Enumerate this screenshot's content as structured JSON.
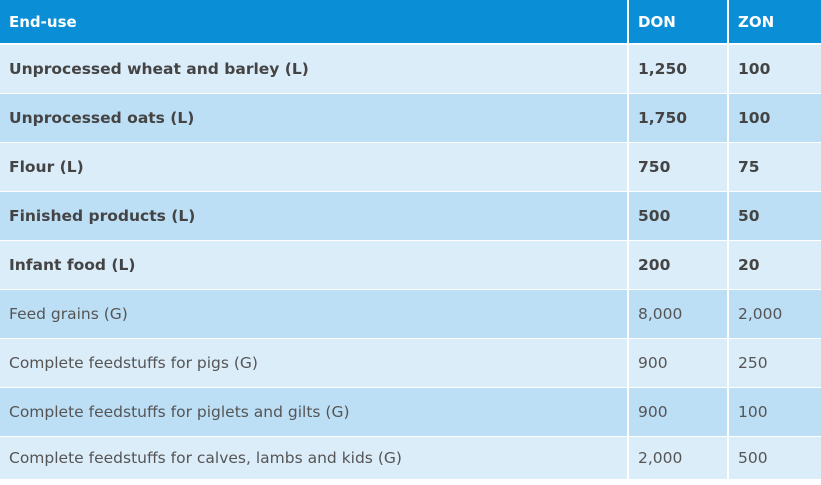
{
  "table": {
    "headers": [
      "End-use",
      "DON",
      "ZON"
    ],
    "rows": [
      {
        "end_use": "Unprocessed wheat and barley (L)",
        "don": "1,250",
        "zon": "100",
        "bold": true
      },
      {
        "end_use": "Unprocessed oats (L)",
        "don": "1,750",
        "zon": "100",
        "bold": true
      },
      {
        "end_use": "Flour (L)",
        "don": "750",
        "zon": "75",
        "bold": true
      },
      {
        "end_use": "Finished products (L)",
        "don": "500",
        "zon": "50",
        "bold": true
      },
      {
        "end_use": "Infant food (L)",
        "don": "200",
        "zon": "20",
        "bold": true
      },
      {
        "end_use": "Feed grains (G)",
        "don": "8,000",
        "zon": "2,000",
        "bold": false
      },
      {
        "end_use": "Complete feedstuffs for pigs (G)",
        "don": "900",
        "zon": "250",
        "bold": false
      },
      {
        "end_use": "Complete feedstuffs for piglets and gilts (G)",
        "don": "900",
        "zon": "100",
        "bold": false
      },
      {
        "end_use": "Complete feedstuffs for calves, lambs and kids (G)",
        "don": "2,000",
        "zon": "500",
        "bold": false
      }
    ]
  },
  "colors": {
    "header_bg": "#0a8fd6",
    "row_light": "#dcedfa",
    "row_dark": "#bddff6"
  }
}
